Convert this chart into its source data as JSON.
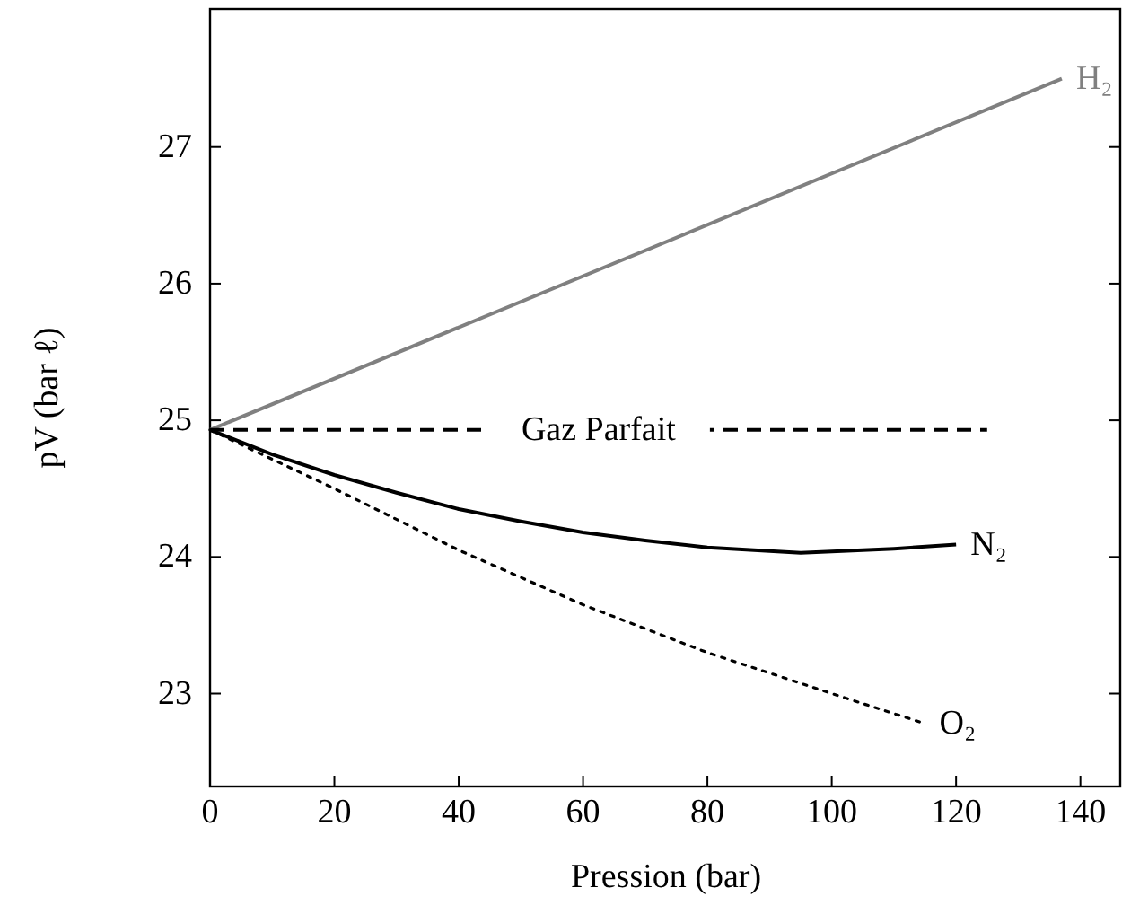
{
  "chart_data": {
    "type": "line",
    "xlabel": "Pression (bar)",
    "ylabel": "pV  (bar ℓ)",
    "xlim": [
      0,
      146.4
    ],
    "ylim": [
      22.32,
      28.01
    ],
    "xticks": [
      0,
      20,
      40,
      60,
      80,
      100,
      120,
      140
    ],
    "yticks": [
      23,
      24,
      25,
      26,
      27
    ],
    "grid": false,
    "marker": "none",
    "series": [
      {
        "name": "H₂",
        "color": "#808080",
        "line_style": "solid",
        "x": [
          0,
          137
        ],
        "values": [
          24.93,
          27.5
        ]
      },
      {
        "name": "Gaz Parfait",
        "color": "#000000",
        "line_style": "dashed",
        "x": [
          0,
          125
        ],
        "values": [
          24.93,
          24.93
        ]
      },
      {
        "name": "N₂",
        "color": "#000000",
        "line_style": "solid",
        "x": [
          0,
          10,
          20,
          30,
          40,
          50,
          60,
          70,
          80,
          95,
          110,
          120
        ],
        "values": [
          24.93,
          24.75,
          24.6,
          24.47,
          24.35,
          24.26,
          24.18,
          24.12,
          24.07,
          24.03,
          24.06,
          24.09
        ]
      },
      {
        "name": "O₂",
        "color": "#000000",
        "line_style": "dotted",
        "x": [
          0,
          20,
          40,
          60,
          80,
          100,
          115
        ],
        "values": [
          24.93,
          24.5,
          24.05,
          23.65,
          23.3,
          23.0,
          22.78
        ]
      }
    ]
  }
}
